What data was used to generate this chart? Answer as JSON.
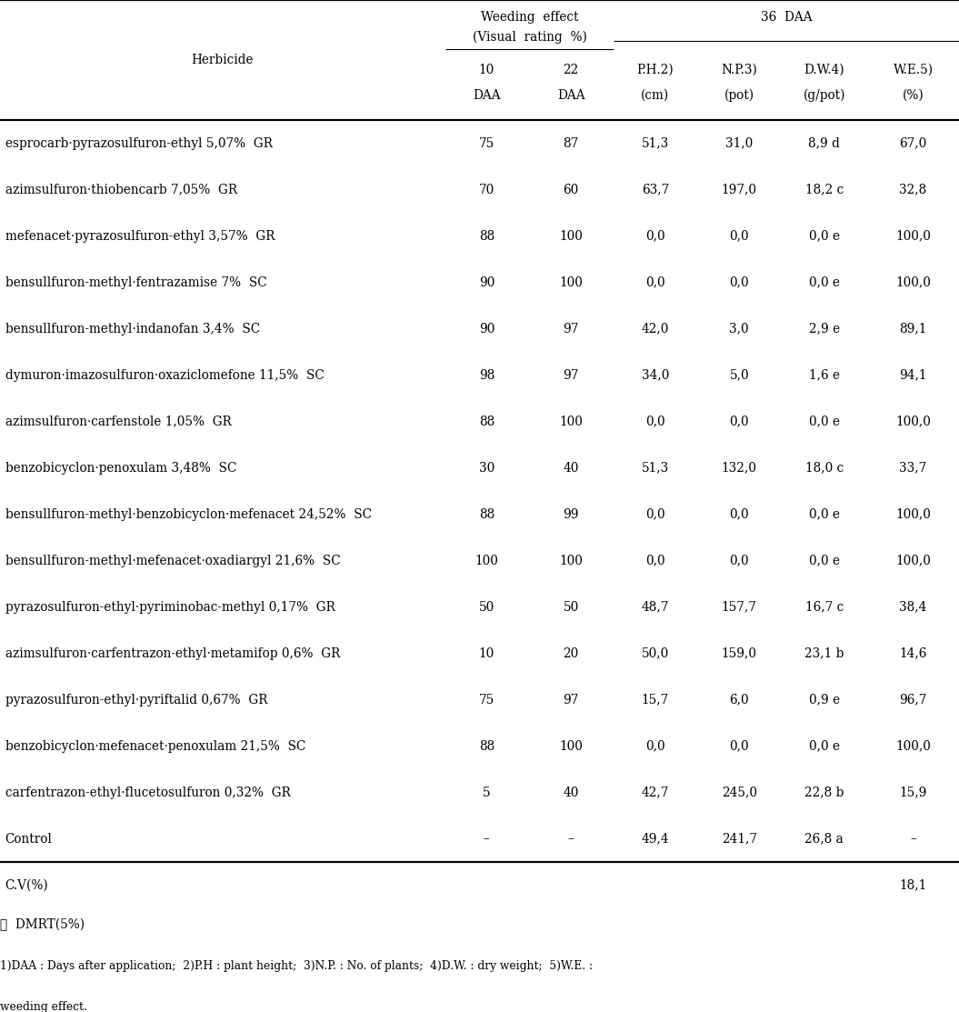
{
  "rows": [
    [
      "esprocarb·pyrazosulfuron-ethyl 5,07%  GR",
      "75",
      "87",
      "51,3",
      "31,0",
      "8,9 d",
      "67,0"
    ],
    [
      "azimsulfuron·thiobencarb 7,05%  GR",
      "70",
      "60",
      "63,7",
      "197,0",
      "18,2 c",
      "32,8"
    ],
    [
      "mefenacet·pyrazosulfuron-ethyl 3,57%  GR",
      "88",
      "100",
      "0,0",
      "0,0",
      "0,0 e",
      "100,0"
    ],
    [
      "bensullfuron-methyl·fentrazamise 7%  SC",
      "90",
      "100",
      "0,0",
      "0,0",
      "0,0 e",
      "100,0"
    ],
    [
      "bensullfuron-methyl·indanofan 3,4%  SC",
      "90",
      "97",
      "42,0",
      "3,0",
      "2,9 e",
      "89,1"
    ],
    [
      "dymuron·imazosulfuron·oxaziclomefone 11,5%  SC",
      "98",
      "97",
      "34,0",
      "5,0",
      "1,6 e",
      "94,1"
    ],
    [
      "azimsulfuron·carfenstole 1,05%  GR",
      "88",
      "100",
      "0,0",
      "0,0",
      "0,0 e",
      "100,0"
    ],
    [
      "benzobicyclon·penoxulam 3,48%  SC",
      "30",
      "40",
      "51,3",
      "132,0",
      "18,0 c",
      "33,7"
    ],
    [
      "bensullfuron-methyl·benzobicyclon·mefenacet 24,52%  SC",
      "88",
      "99",
      "0,0",
      "0,0",
      "0,0 e",
      "100,0"
    ],
    [
      "bensullfuron-methyl·mefenacet·oxadiargyl 21,6%  SC",
      "100",
      "100",
      "0,0",
      "0,0",
      "0,0 e",
      "100,0"
    ],
    [
      "pyrazosulfuron-ethyl·pyriminobac-methyl 0,17%  GR",
      "50",
      "50",
      "48,7",
      "157,7",
      "16,7 c",
      "38,4"
    ],
    [
      "azimsulfuron·carfentrazon-ethyl·metamifop 0,6%  GR",
      "10",
      "20",
      "50,0",
      "159,0",
      "23,1 b",
      "14,6"
    ],
    [
      "pyrazosulfuron-ethyl·pyriftalid 0,67%  GR",
      "75",
      "97",
      "15,7",
      "6,0",
      "0,9 e",
      "96,7"
    ],
    [
      "benzobicyclon·mefenacet·penoxulam 21,5%  SC",
      "88",
      "100",
      "0,0",
      "0,0",
      "0,0 e",
      "100,0"
    ],
    [
      "carfentrazon-ethyl·flucetosulfuron 0,32%  GR",
      "5",
      "40",
      "42,7",
      "245,0",
      "22,8 b",
      "15,9"
    ],
    [
      "Control",
      "–",
      "–",
      "49,4",
      "241,7",
      "26,8 a",
      "–"
    ]
  ],
  "cv_value": "18,1",
  "footnote_dmrt": "※  DMRT(5%)",
  "footnote_line1": "1)DAA : Days after application;  2)P.H : plant height;  3)N.P. : No. of plants;  4)D.W. : dry weight;  5)W.E. :",
  "footnote_line2": "weeding effect.",
  "header_herb": "Herbicide",
  "header_we_line1": "Weeding  effect",
  "header_we_line2": "(Visual  rating  %)",
  "header_36daa": "36  DAA",
  "subheaders_top": [
    "10",
    "22",
    "P.H.",
    "N.P.",
    "D.W.",
    "W.E."
  ],
  "subheaders_sup": [
    "",
    "",
    "2)",
    "3)",
    "4)",
    "5)"
  ],
  "subheaders_bot": [
    "DAA",
    "DAA",
    "(cm)",
    "(pot)",
    "(g/pot)",
    "(%)"
  ]
}
